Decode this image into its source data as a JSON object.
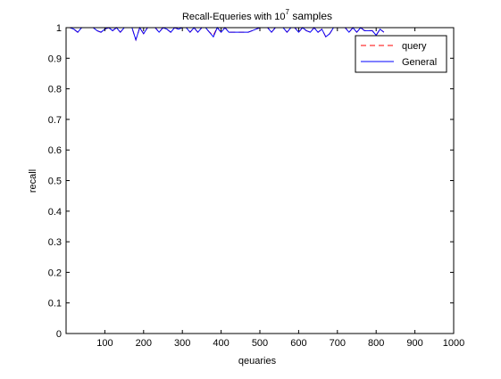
{
  "chart_data": {
    "type": "line",
    "title": {
      "main": "Recall-Equeries with 10",
      "superscript": "7",
      "suffix": " samples"
    },
    "xlabel": "qeuaries",
    "ylabel": "recall",
    "xlim": [
      0,
      1000
    ],
    "ylim": [
      0,
      1
    ],
    "xticks": [
      100,
      200,
      300,
      400,
      500,
      600,
      700,
      800,
      900,
      1000
    ],
    "xtick_labels": [
      "100",
      "200",
      "300",
      "400",
      "500",
      "600",
      "700",
      "800",
      "900",
      "1000"
    ],
    "yticks": [
      0,
      0.1,
      0.2,
      0.3,
      0.4,
      0.5,
      0.6,
      0.7,
      0.8,
      0.9,
      1
    ],
    "ytick_labels": [
      "0",
      "0.1",
      "0.2",
      "0.3",
      "0.4",
      "0.5",
      "0.6",
      "0.7",
      "0.8",
      "0.9",
      "1"
    ],
    "grid": false,
    "legend_position": "top-right",
    "series": [
      {
        "name": "query",
        "color": "#ff0000",
        "dash": "dashed",
        "x": [
          0,
          10,
          20,
          30,
          40,
          50,
          60,
          70,
          80,
          90,
          100,
          110,
          120,
          130,
          140,
          150,
          160,
          170,
          180,
          190,
          200,
          210,
          220,
          230,
          240,
          250,
          260,
          270,
          280,
          290,
          300,
          310,
          320,
          330,
          340,
          350,
          360,
          370,
          380,
          390,
          400,
          410,
          420,
          430,
          440,
          450,
          460,
          470,
          480,
          490,
          500,
          510,
          520,
          530,
          540,
          550,
          560,
          570,
          580,
          590,
          600,
          610,
          620,
          630,
          640,
          650,
          660,
          670,
          680,
          690,
          700,
          710,
          720,
          730,
          740,
          750,
          760,
          770,
          780,
          790,
          800,
          810,
          820
        ],
        "y": [
          1,
          1,
          0.995,
          0.985,
          1,
          1,
          1,
          1,
          0.99,
          0.985,
          0.995,
          1,
          0.99,
          1,
          0.985,
          1,
          1,
          1,
          0.96,
          1,
          0.98,
          1,
          1,
          1,
          0.985,
          1,
          0.995,
          0.985,
          1,
          0.995,
          1,
          1,
          0.985,
          1,
          0.985,
          1,
          1,
          0.985,
          0.975,
          1,
          0.985,
          1,
          0.985,
          0.985,
          0.985,
          0.985,
          0.985,
          0.985,
          0.99,
          0.995,
          1,
          1,
          1,
          0.985,
          1,
          1,
          1,
          0.985,
          1,
          1,
          0.985,
          1,
          0.99,
          0.985,
          1,
          0.985,
          0.995,
          0.97,
          0.98,
          1,
          1,
          1,
          1,
          0.985,
          1,
          0.985,
          1,
          0.99,
          0.99,
          0.99,
          0.975,
          0.995,
          0.985
        ]
      },
      {
        "name": "General",
        "color": "#0000ff",
        "dash": "solid",
        "x": [
          0,
          10,
          20,
          30,
          40,
          50,
          60,
          70,
          80,
          90,
          100,
          110,
          120,
          130,
          140,
          150,
          160,
          170,
          180,
          190,
          200,
          210,
          220,
          230,
          240,
          250,
          260,
          270,
          280,
          290,
          300,
          310,
          320,
          330,
          340,
          350,
          360,
          370,
          380,
          390,
          400,
          410,
          420,
          430,
          440,
          450,
          460,
          470,
          480,
          490,
          500,
          510,
          520,
          530,
          540,
          550,
          560,
          570,
          580,
          590,
          600,
          610,
          620,
          630,
          640,
          650,
          660,
          670,
          680,
          690,
          700,
          710,
          720,
          730,
          740,
          750,
          760,
          770,
          780,
          790,
          800,
          810,
          820
        ],
        "y": [
          1,
          1,
          0.995,
          0.985,
          1,
          1,
          1,
          1,
          0.99,
          0.985,
          0.995,
          1,
          0.99,
          1,
          0.985,
          1,
          1,
          1,
          0.96,
          1,
          0.98,
          1,
          1,
          1,
          0.985,
          1,
          0.995,
          0.985,
          1,
          0.995,
          1,
          1,
          0.985,
          1,
          0.985,
          1,
          1,
          0.985,
          0.97,
          1,
          0.985,
          1,
          0.985,
          0.985,
          0.985,
          0.985,
          0.985,
          0.985,
          0.99,
          0.995,
          1,
          1,
          1,
          0.985,
          1,
          1,
          1,
          0.985,
          1,
          1,
          0.985,
          1,
          0.99,
          0.985,
          1,
          0.985,
          0.995,
          0.97,
          0.98,
          1,
          1,
          1,
          1,
          0.985,
          1,
          0.985,
          1,
          0.99,
          0.99,
          0.99,
          0.975,
          0.995,
          0.985
        ]
      }
    ]
  }
}
